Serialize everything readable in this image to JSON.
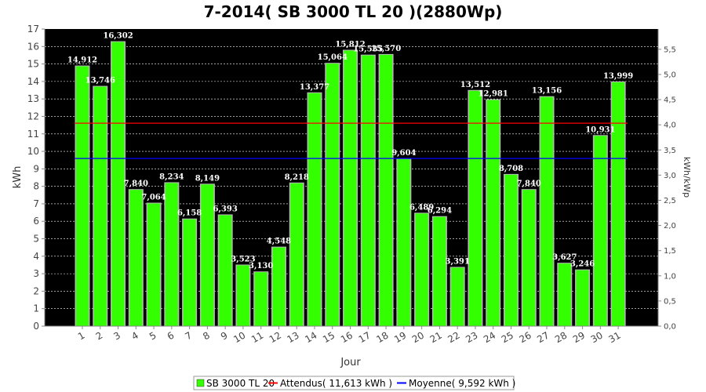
{
  "chart_data": {
    "type": "bar",
    "title": "7-2014( SB 3000 TL 20 )(2880Wp)",
    "xlabel": "Jour",
    "ylabel": "kWh",
    "ylabel_right": "kWh/kWp",
    "ylim": [
      0,
      17
    ],
    "yticks": [
      "0",
      "1",
      "2",
      "3",
      "4",
      "5",
      "6",
      "7",
      "8",
      "9",
      "10",
      "11",
      "12",
      "13",
      "14",
      "15",
      "16",
      "17"
    ],
    "ylim_right": [
      0,
      5.903
    ],
    "yticks_right": [
      "0,0",
      "0,5",
      "1,0",
      "1,5",
      "2,0",
      "2,5",
      "3,0",
      "3,5",
      "4,0",
      "4,5",
      "5,0",
      "5,5"
    ],
    "categories": [
      "1",
      "2",
      "3",
      "4",
      "5",
      "6",
      "7",
      "8",
      "9",
      "10",
      "11",
      "12",
      "13",
      "14",
      "15",
      "16",
      "17",
      "18",
      "19",
      "20",
      "21",
      "22",
      "23",
      "24",
      "25",
      "26",
      "27",
      "28",
      "29",
      "30",
      "31"
    ],
    "series": [
      {
        "name": "SB 3000 TL 20",
        "color": "#33ff00",
        "values": [
          14.912,
          13.746,
          16.302,
          7.84,
          7.064,
          8.234,
          6.158,
          8.149,
          6.393,
          3.523,
          3.13,
          4.548,
          8.218,
          13.377,
          15.064,
          15.812,
          15.535,
          15.57,
          9.604,
          6.489,
          6.294,
          3.391,
          13.512,
          12.981,
          8.708,
          7.84,
          13.156,
          3.627,
          3.246,
          10.931,
          13.999
        ],
        "labels": [
          "14,912",
          "13,746",
          "16,302",
          "7,840",
          "7,064",
          "8,234",
          "6,158",
          "8,149",
          "6,393",
          "3,523",
          "3,130",
          "4,548",
          "8,218",
          "13,377",
          "15,064",
          "15,812",
          "15,535",
          "15,570",
          "9,604",
          "6,489",
          "6,294",
          "3,391",
          "13,512",
          "12,981",
          "8,708",
          "7,840",
          "13,156",
          "3,627",
          "3,246",
          "10,931",
          "13,999"
        ]
      }
    ],
    "reference_lines": [
      {
        "name": "Attendus( 11,613 kWh )",
        "value": 11.613,
        "color": "#ff0000"
      },
      {
        "name": "Moyenne( 9,592 kWh )",
        "value": 9.592,
        "color": "#0000ff"
      }
    ],
    "grid": true,
    "plot_background": "#000000",
    "legend_position": "bottom"
  }
}
